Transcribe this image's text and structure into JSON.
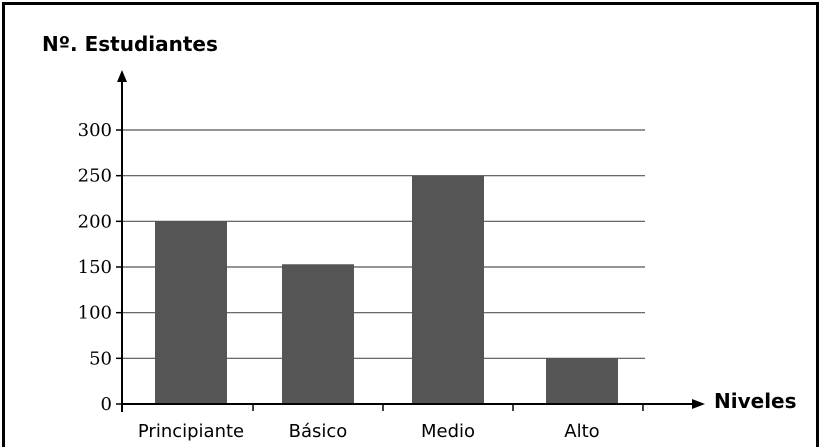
{
  "chart_data": {
    "type": "bar",
    "ylabel": "Nº. Estudiantes",
    "xlabel": "Niveles",
    "categories": [
      "Principiante",
      "Básico",
      "Medio",
      "Alto"
    ],
    "values": [
      200,
      153,
      250,
      50
    ],
    "ylim": [
      0,
      300
    ],
    "yticks": [
      0,
      50,
      100,
      150,
      200,
      250,
      300
    ],
    "grid": true,
    "colors": {
      "bar": "#555555",
      "grid": "#555555",
      "axis": "#000000"
    }
  }
}
